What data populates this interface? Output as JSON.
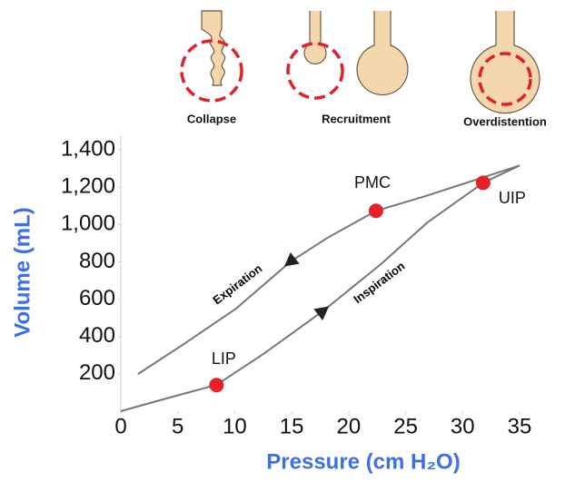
{
  "illustrations": [
    "Collapse",
    "Recruitment",
    "Overdistention"
  ],
  "chart_data": {
    "type": "line",
    "xlabel": "Pressure (cm H₂O)",
    "ylabel": "Volume (mL)",
    "xlim": [
      0,
      35
    ],
    "xticks": [
      0,
      5,
      10,
      15,
      20,
      25,
      30,
      35
    ],
    "ylim": [
      0,
      1400
    ],
    "yticks": [
      200,
      400,
      600,
      800,
      {
        "value": 1000,
        "label": "1,000"
      },
      {
        "value": 1200,
        "label": "1,200"
      },
      {
        "value": 1400,
        "label": "1,400"
      }
    ],
    "series": [
      {
        "name": "Inspiration",
        "color": "#777777",
        "x": [
          0,
          3.7,
          8.4,
          12.5,
          17.7,
          22.9,
          26.9,
          31.8,
          35
        ],
        "values": [
          0,
          63,
          141,
          306,
          534,
          791,
          1010,
          1223,
          1316
        ]
      },
      {
        "name": "Expiration",
        "color": "#777777",
        "x": [
          35,
          31.8,
          26.9,
          22.4,
          18.1,
          14.9,
          10.1,
          5.4,
          1.5
        ],
        "values": [
          1316,
          1252,
          1155,
          1073,
          927,
          801,
          549,
          354,
          199
        ]
      }
    ],
    "points": {
      "color": "#e8202a",
      "labels": [
        "LIP",
        "PMC",
        "UIP"
      ],
      "x": [
        8.4,
        22.4,
        31.8
      ],
      "values": [
        140,
        1073,
        1223
      ]
    }
  }
}
